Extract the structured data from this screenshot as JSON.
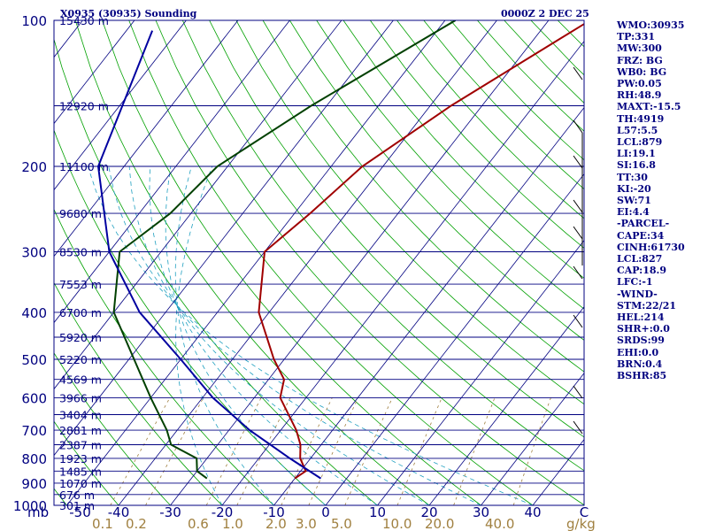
{
  "chart_data": {
    "type": "line",
    "title_left": "X0935 (30935) Sounding",
    "title_right": "0000Z  2 DEC 25",
    "pressure_ticks": [
      "100",
      "200",
      "300",
      "400",
      "500",
      "600",
      "700",
      "800",
      "900",
      "1000"
    ],
    "pressure_unit": "mb",
    "temperature_ticks": [
      "-50",
      "-40",
      "-30",
      "-20",
      "-10",
      "0",
      "10",
      "20",
      "30",
      "40"
    ],
    "temperature_unit": "C",
    "mixing_ratio_ticks": [
      "0.1",
      "0.2",
      "0.6",
      "1.0",
      "2.0",
      "3.0",
      "5.0",
      "10.0",
      "20.0",
      "40.0"
    ],
    "mixing_ratio_unit": "g/kg",
    "height_labels": [
      {
        "p": 100,
        "text": "15430 m"
      },
      {
        "p": 150,
        "text": "12920 m"
      },
      {
        "p": 200,
        "text": "11100 m"
      },
      {
        "p": 250,
        "text": "9680 m"
      },
      {
        "p": 300,
        "text": "8530 m"
      },
      {
        "p": 350,
        "text": "7553 m"
      },
      {
        "p": 400,
        "text": "6700 m"
      },
      {
        "p": 450,
        "text": "5920 m"
      },
      {
        "p": 500,
        "text": "5220 m"
      },
      {
        "p": 550,
        "text": "4569 m"
      },
      {
        "p": 600,
        "text": "3966 m"
      },
      {
        "p": 650,
        "text": "3404 m"
      },
      {
        "p": 700,
        "text": "2881 m"
      },
      {
        "p": 750,
        "text": "2387 m"
      },
      {
        "p": 800,
        "text": "1923 m"
      },
      {
        "p": 850,
        "text": "1485 m"
      },
      {
        "p": 900,
        "text": "1070 m"
      },
      {
        "p": 950,
        "text": "676 m"
      },
      {
        "p": 1000,
        "text": "301 m"
      }
    ],
    "series": [
      {
        "name": "temperature",
        "color": "#a00000",
        "p": [
          100,
          150,
          200,
          250,
          300,
          400,
          500,
          550,
          600,
          700,
          750,
          800,
          850,
          880
        ],
        "t": [
          -22,
          -36,
          -44,
          -47,
          -50,
          -42,
          -32,
          -27,
          -25,
          -17,
          -14,
          -12,
          -9,
          -10
        ]
      },
      {
        "name": "dewpoint",
        "color": "#004000",
        "p": [
          100,
          150,
          200,
          250,
          300,
          400,
          500,
          600,
          700,
          750,
          800,
          850,
          880
        ],
        "t": [
          -48,
          -63,
          -72,
          -74,
          -78,
          -70,
          -59,
          -50,
          -42,
          -39,
          -32,
          -30,
          -27
        ]
      },
      {
        "name": "parcel",
        "color": "#0000a0",
        "p": [
          105,
          200,
          300,
          400,
          500,
          600,
          700,
          800,
          880
        ],
        "t": [
          -105,
          -95,
          -80,
          -65,
          -50,
          -38,
          -26,
          -14,
          -5
        ]
      }
    ]
  },
  "indices": [
    "WMO:30935",
    "TP:331",
    "MW:300",
    "FRZ: BG",
    "WB0: BG",
    "PW:0.05",
    "RH:48.9",
    "MAXT:-15.5",
    "TH:4919",
    "L57:5.5",
    "LCL:879",
    "LI:19.1",
    "SI:16.8",
    "TT:30",
    "KI:-20",
    "SW:71",
    "EI:4.4",
    "-PARCEL-",
    "CAPE:34",
    "CINH:61730",
    "LCL:827",
    "CAP:18.9",
    "LFC:-1",
    "-WIND-",
    "STM:22/21",
    "HEL:214",
    "SHR+:0.0",
    "SRDS:99",
    "EHI:0.0",
    "BRN:0.4",
    "BSHR:85"
  ],
  "colors": {
    "isobar": "#000080",
    "isotherm": "#000080",
    "dry_adiabat": "#00a000",
    "moist_adiabat": "#20a0c0",
    "mixing_ratio": "#a08040",
    "text": "#000080",
    "ticks_bottom": "#a08040"
  }
}
